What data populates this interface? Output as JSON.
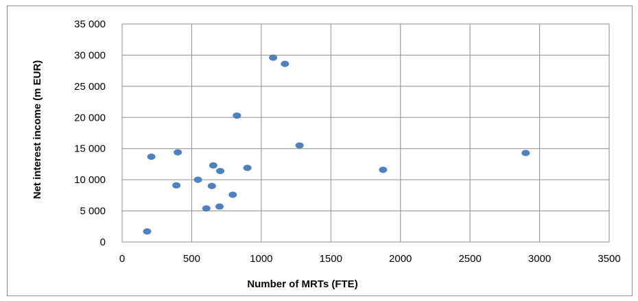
{
  "chart_data": {
    "type": "scatter",
    "title": "",
    "xlabel": "Number of MRTs (FTE)",
    "ylabel": "Net interest income (m EUR)",
    "xlim": [
      0,
      3500
    ],
    "ylim": [
      0,
      35000
    ],
    "xticks": [
      0,
      500,
      1000,
      1500,
      2000,
      2500,
      3000,
      3500
    ],
    "yticks": [
      0,
      5000,
      10000,
      15000,
      20000,
      25000,
      30000,
      35000
    ],
    "xtick_labels": [
      "0",
      "500",
      "1000",
      "1500",
      "2000",
      "2500",
      "3000",
      "3500"
    ],
    "ytick_labels": [
      "0",
      "5 000",
      "10 000",
      "15 000",
      "20 000",
      "25 000",
      "30 000",
      "35 000"
    ],
    "grid": true,
    "legend": "none",
    "marker_color": "#4f81bd",
    "points": [
      {
        "x": 180,
        "y": 1700
      },
      {
        "x": 210,
        "y": 13700
      },
      {
        "x": 390,
        "y": 9100
      },
      {
        "x": 400,
        "y": 14400
      },
      {
        "x": 545,
        "y": 10000
      },
      {
        "x": 605,
        "y": 5400
      },
      {
        "x": 645,
        "y": 9000
      },
      {
        "x": 655,
        "y": 12300
      },
      {
        "x": 700,
        "y": 5700
      },
      {
        "x": 705,
        "y": 11400
      },
      {
        "x": 795,
        "y": 7600
      },
      {
        "x": 825,
        "y": 20300
      },
      {
        "x": 900,
        "y": 11900
      },
      {
        "x": 1085,
        "y": 29600
      },
      {
        "x": 1170,
        "y": 28600
      },
      {
        "x": 1275,
        "y": 15500
      },
      {
        "x": 1875,
        "y": 11600
      },
      {
        "x": 2900,
        "y": 14300
      }
    ]
  }
}
